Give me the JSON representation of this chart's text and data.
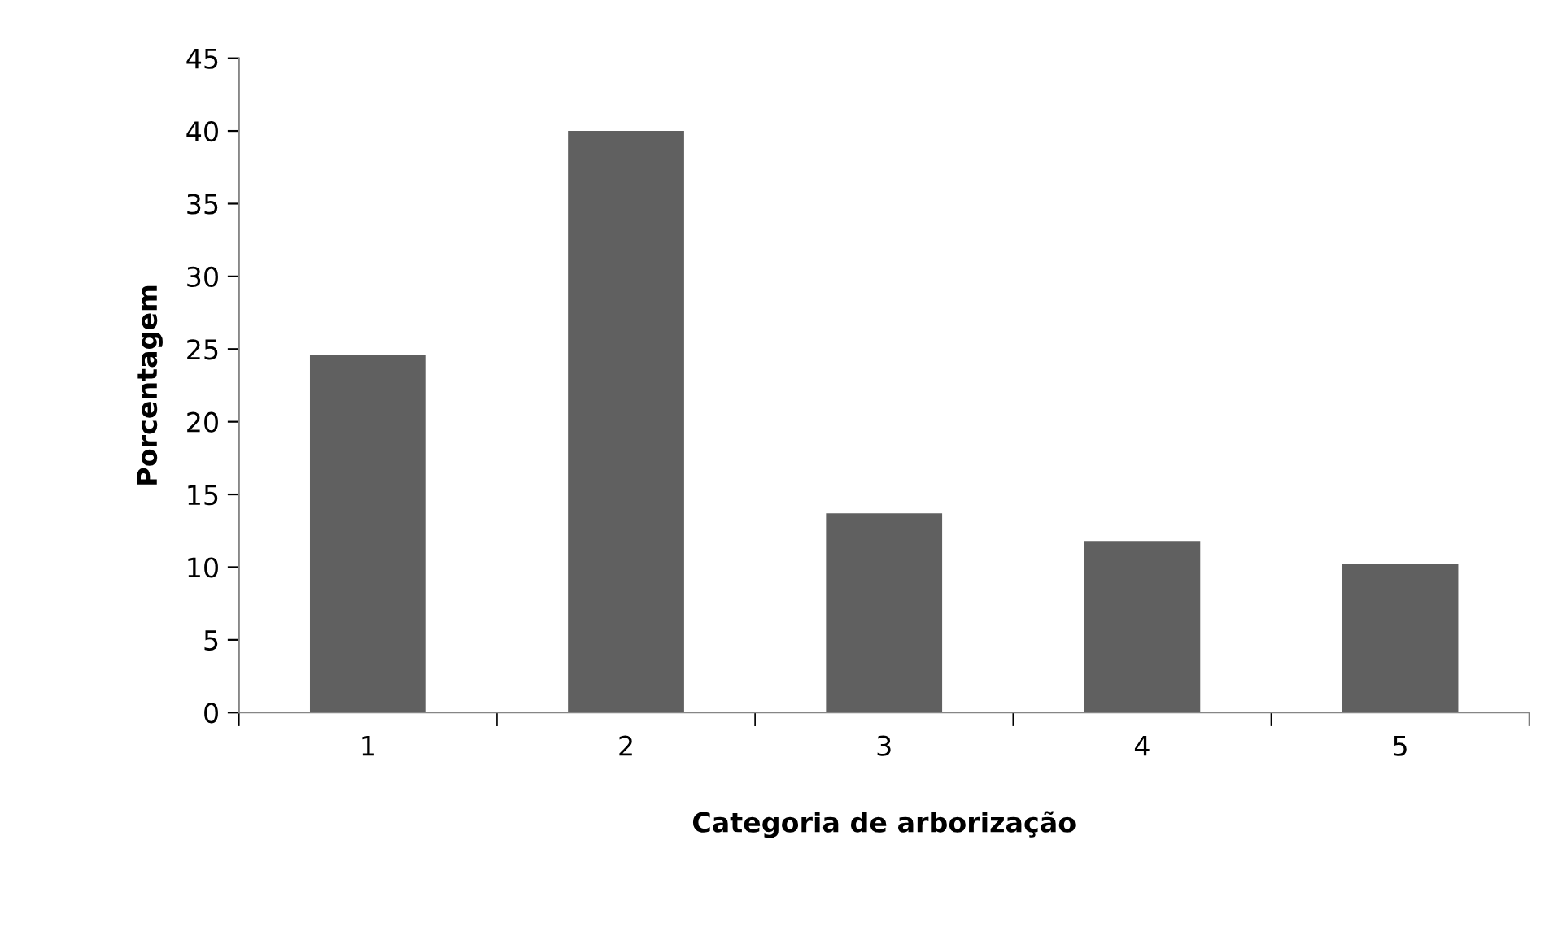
{
  "chart_data": {
    "type": "bar",
    "xlabel": "Categoria de arborização",
    "ylabel": "Porcentagem",
    "categories": [
      "1",
      "2",
      "3",
      "4",
      "5"
    ],
    "values": [
      24.6,
      40.0,
      13.7,
      11.8,
      10.2
    ],
    "color": "#606060",
    "ylim": [
      0,
      45
    ],
    "yticks": [
      0,
      5,
      10,
      15,
      20,
      25,
      30,
      35,
      40,
      45
    ],
    "grid": false,
    "legend": false
  }
}
